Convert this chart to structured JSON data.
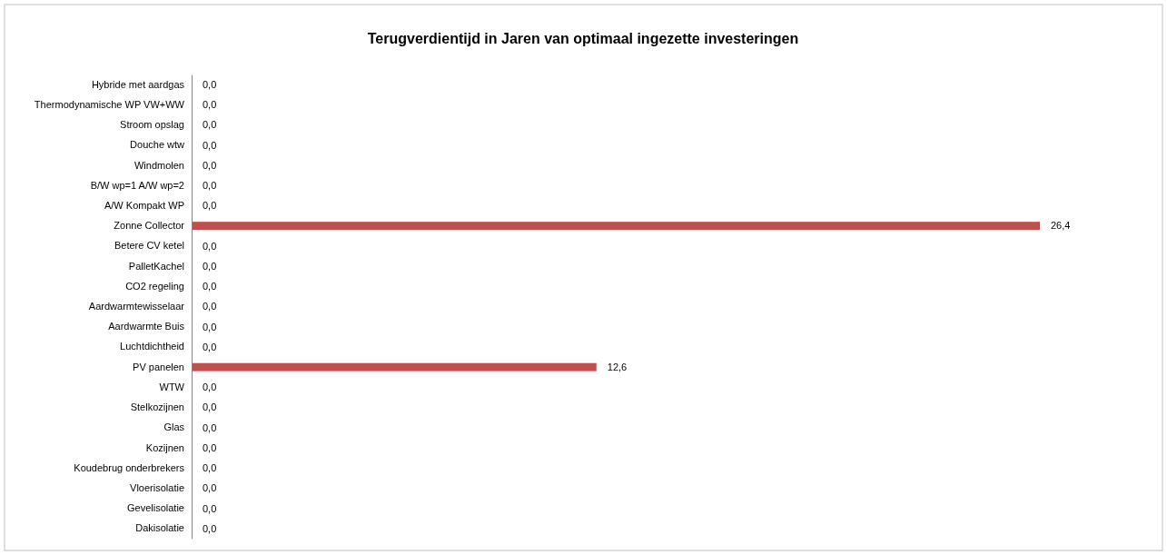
{
  "chart_data": {
    "type": "bar",
    "orientation": "horizontal",
    "title": "Terugverdientijd in Jaren van optimaal ingezette investeringen",
    "categories": [
      "Hybride met aardgas",
      "Thermodynamische WP VW+WW",
      "Stroom opslag",
      "Douche wtw",
      "Windmolen",
      "B/W wp=1 A/W wp=2",
      "A/W Kompakt WP",
      "Zonne Collector",
      "Betere CV ketel",
      "PalletKachel",
      "CO2 regeling",
      "Aardwarmtewisselaar",
      "Aardwarmte Buis",
      "Luchtdichtheid",
      "PV panelen",
      "WTW",
      "Stelkozijnen",
      "Glas",
      "Kozijnen",
      "Koudebrug onderbrekers",
      "Vloerisolatie",
      "Gevelisolatie",
      "Dakisolatie"
    ],
    "values": [
      0,
      0,
      0,
      0,
      0,
      0,
      0,
      26.4,
      0,
      0,
      0,
      0,
      0,
      0,
      12.6,
      0,
      0,
      0,
      0,
      0,
      0,
      0,
      0
    ],
    "value_labels": [
      "0,0",
      "0,0",
      "0,0",
      "0,0",
      "0,0",
      "0,0",
      "0,0",
      "26,4",
      "0,0",
      "0,0",
      "0,0",
      "0,0",
      "0,0",
      "0,0",
      "12,6",
      "0,0",
      "0,0",
      "0,0",
      "0,0",
      "0,0",
      "0,0",
      "0,0",
      "0,0"
    ],
    "color": "#c0504d",
    "tick_labels": "y"
  }
}
